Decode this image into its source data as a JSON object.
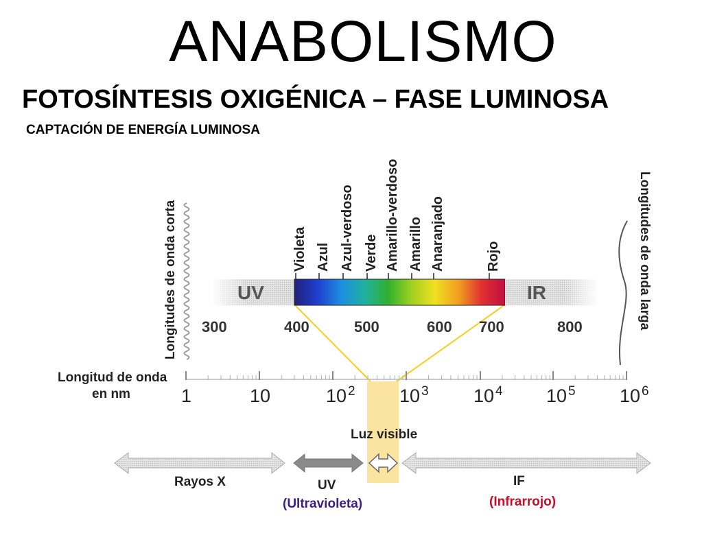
{
  "page": {
    "title": "ANABOLISMO",
    "subtitle": "FOTOSÍNTESIS OXIGÉNICA – FASE LUMINOSA",
    "section": "CAPTACIÓN DE ENERGÍA LUMINOSA"
  },
  "spectrum": {
    "uv_label": "UV",
    "ir_label": "IR",
    "colors": [
      "Violeta",
      "Azul",
      "Azul-verdoso",
      "Verde",
      "Amarillo-verdoso",
      "Amarillo",
      "Anaranjado",
      "Rojo"
    ],
    "gradient_colors": [
      "#20207a",
      "#1f3fd0",
      "#1c8fe0",
      "#20b0a0",
      "#30b030",
      "#a0d020",
      "#f0e020",
      "#f0a020",
      "#e03030",
      "#c01040"
    ],
    "ticks": [
      "300",
      "400",
      "500",
      "600",
      "700",
      "800"
    ],
    "left_side_label": "Longitudes de onda corta",
    "right_side_label": "Longitudes de onda larga"
  },
  "scale": {
    "axis_label_line1": "Longitud de onda",
    "axis_label_line2": "en nm",
    "ticks": [
      {
        "base": "1",
        "exp": ""
      },
      {
        "base": "10",
        "exp": ""
      },
      {
        "base": "10",
        "exp": "2"
      },
      {
        "base": "10",
        "exp": "3"
      },
      {
        "base": "10",
        "exp": "4"
      },
      {
        "base": "10",
        "exp": "5"
      },
      {
        "base": "10",
        "exp": "6"
      }
    ],
    "visible_label": "Luz visible"
  },
  "bands": {
    "xray": "Rayos X",
    "uv": "UV",
    "uv_full": "(Ultravioleta)",
    "ir": "IF",
    "ir_full": "(Infrarrojo)",
    "uv_full_color": "#3a1f8a",
    "ir_full_color": "#c0102a",
    "highlight_color": "#fbe3a0",
    "line_color": "#f5d020"
  }
}
